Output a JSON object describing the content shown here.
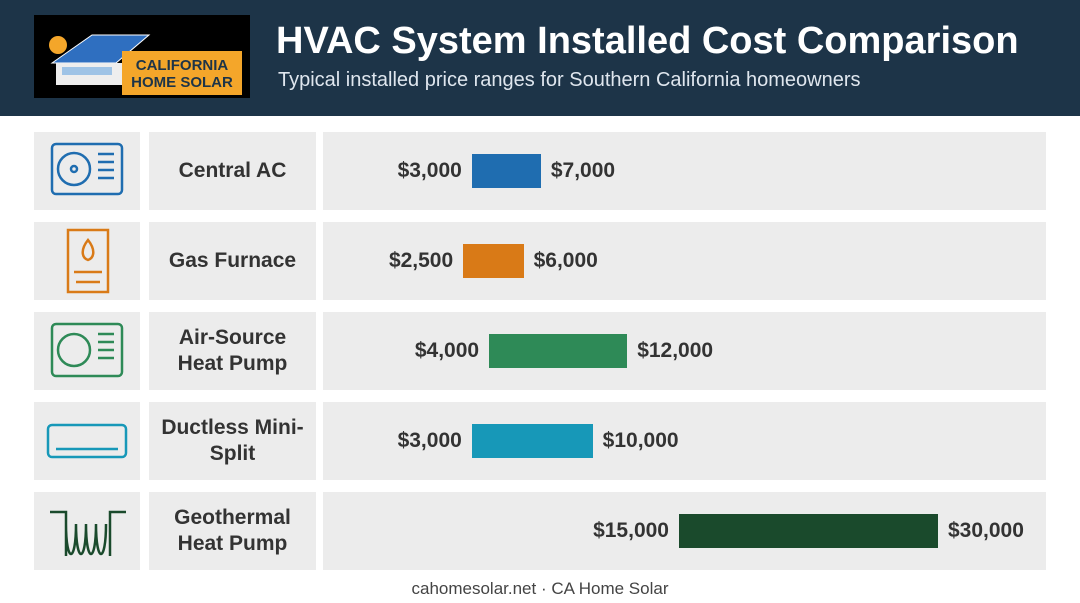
{
  "header": {
    "logo_line1": "CALIFORNIA",
    "logo_line2": "HOME SOLAR"
  },
  "chart_data": {
    "type": "range-bar",
    "title": "HVAC System Installed Cost Comparison",
    "subtitle": "Typical installed price ranges for Southern California homeowners",
    "categories": [
      "Central AC",
      "Gas Furnace",
      "Air-Source Heat Pump",
      "Ductless Mini-Split",
      "Geothermal Heat Pump"
    ],
    "low_values": [
      3000,
      2500,
      4000,
      3000,
      15000
    ],
    "high_values": [
      7000,
      6000,
      12000,
      10000,
      30000
    ],
    "low_value_labels": [
      "$3,000",
      "$2,500",
      "$4,000",
      "$3,000",
      "$15,000"
    ],
    "high_value_labels": [
      "$7,000",
      "$6,000",
      "$12,000",
      "$10,000",
      "$30,000"
    ],
    "colors": [
      "#1f6db0",
      "#d97a17",
      "#2e8a57",
      "#1798b8",
      "#1a4a2c"
    ]
  },
  "footer": "cahomesolar.net · CA Home Solar"
}
